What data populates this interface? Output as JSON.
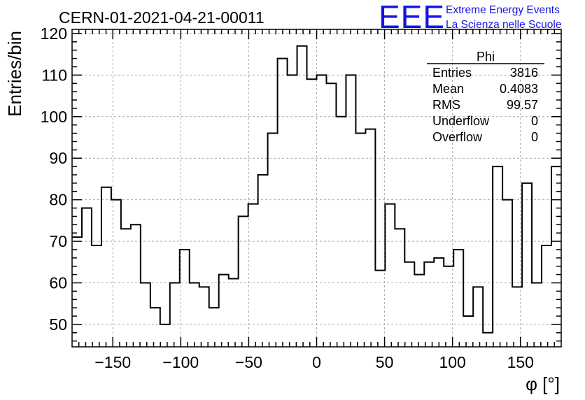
{
  "header": {
    "title": "CERN-01-2021-04-21-00011",
    "logo_text": "EEE",
    "logo_line1": "Extreme Energy Events",
    "logo_line2": "La Scienza nelle Scuole",
    "logo_color": "#1414e6"
  },
  "stats_box": {
    "name": "Phi",
    "rows": [
      {
        "label": "Entries",
        "value": "3816"
      },
      {
        "label": "Mean",
        "value": "0.4083"
      },
      {
        "label": "RMS",
        "value": "99.57"
      },
      {
        "label": "Underflow",
        "value": "0"
      },
      {
        "label": "Overflow",
        "value": "0"
      }
    ]
  },
  "chart_data": {
    "type": "histogram",
    "title": "CERN-01-2021-04-21-00011",
    "xlabel": "φ [°]",
    "ylabel": "Entries/bin",
    "xlim": [
      -180,
      180
    ],
    "ylim": [
      44.6,
      121
    ],
    "bin_width": 7.2,
    "x_ticks": [
      -150,
      -100,
      -50,
      0,
      50,
      100,
      150
    ],
    "x_tick_labels": [
      "−150",
      "−100",
      "−50",
      "0",
      "50",
      "100",
      "150"
    ],
    "y_ticks": [
      50,
      60,
      70,
      80,
      90,
      100,
      110,
      120
    ],
    "y_tick_labels": [
      "50",
      "60",
      "70",
      "80",
      "90",
      "100",
      "110",
      "120"
    ],
    "grid": true,
    "line_color": "#000000",
    "values": [
      71,
      78,
      69,
      83,
      80,
      73,
      74,
      60,
      54,
      50,
      60,
      68,
      60,
      59,
      54,
      62,
      61,
      76,
      79,
      86,
      96,
      114,
      110,
      117,
      109,
      110,
      108,
      100,
      110,
      96,
      97,
      63,
      79,
      73,
      65,
      62,
      65,
      66,
      64,
      68,
      52,
      59,
      48,
      88,
      80,
      59,
      84,
      60,
      69,
      88
    ]
  }
}
